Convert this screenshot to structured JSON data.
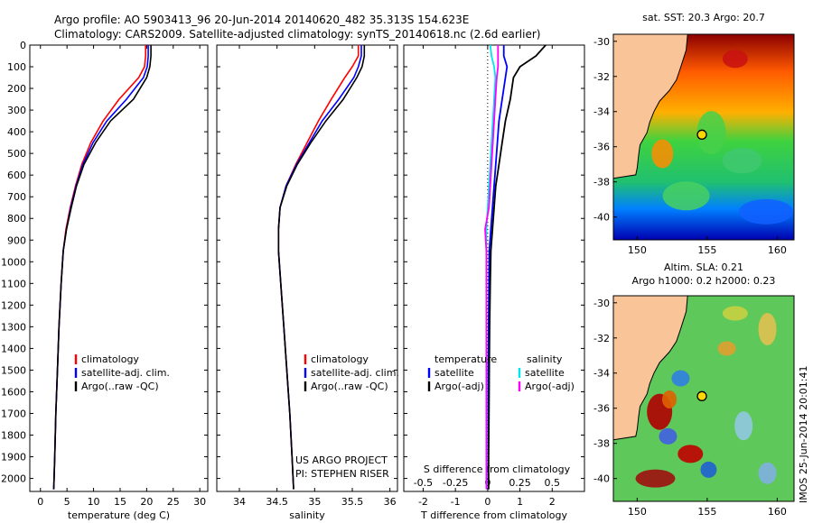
{
  "header": {
    "line1": "Argo profile: AO 5903413_96 20-Jun-2014 20140620_482 35.313S 154.623E",
    "line2": "Climatology: CARS2009. Satellite-adjusted climatology: synTS_20140618.nc (2.6d earlier)"
  },
  "side_label": "IMOS 25-Jun-2014 20:01:41",
  "colors": {
    "clim": "#ff0000",
    "sat": "#0000ff",
    "argo": "#000000",
    "sat_s": "#00e5ee",
    "argo_s": "#ff00ff",
    "land": "#f9c498"
  },
  "depth_ticks": [
    0,
    100,
    200,
    300,
    400,
    500,
    600,
    700,
    800,
    900,
    1000,
    1100,
    1200,
    1300,
    1400,
    1500,
    1600,
    1700,
    1800,
    1900,
    2000
  ],
  "chart_data": [
    {
      "type": "line",
      "xlabel": "temperature (deg C)",
      "ylabel": "",
      "xlim": [
        -2,
        31.5
      ],
      "ylim": [
        2060,
        0
      ],
      "xticks": [
        0,
        5,
        10,
        15,
        20,
        25,
        30
      ],
      "legend": [
        "climatology",
        "satellite-adj. clim.",
        "Argo(..raw -QC)"
      ],
      "series": [
        {
          "name": "climatology",
          "color": "clim",
          "x": [
            19.8,
            19.8,
            19.6,
            18.5,
            14.8,
            11.8,
            9.5,
            7.8,
            6.6,
            5.6,
            4.8,
            4.3,
            3.9,
            3.5,
            3.2,
            2.9,
            2.7,
            2.5
          ],
          "y": [
            0,
            50,
            100,
            150,
            250,
            350,
            450,
            550,
            650,
            750,
            850,
            950,
            1100,
            1300,
            1500,
            1700,
            1900,
            2050
          ]
        },
        {
          "name": "satellite-adj. clim.",
          "color": "sat",
          "x": [
            20.3,
            20.3,
            20.1,
            19.4,
            16.2,
            12.5,
            9.9,
            8.0,
            6.7,
            5.7,
            4.9,
            4.3,
            3.9,
            3.5,
            3.2,
            2.9,
            2.7,
            2.5
          ],
          "y": [
            0,
            50,
            100,
            150,
            250,
            350,
            450,
            550,
            650,
            750,
            850,
            950,
            1100,
            1300,
            1500,
            1700,
            1900,
            2050
          ]
        },
        {
          "name": "Argo(..raw -QC)",
          "color": "argo",
          "x": [
            20.8,
            20.8,
            20.6,
            20.0,
            17.5,
            13.2,
            10.4,
            8.2,
            6.8,
            5.8,
            4.9,
            4.3,
            3.9,
            3.5,
            3.2,
            2.9,
            2.7,
            2.5
          ],
          "y": [
            0,
            50,
            100,
            150,
            250,
            350,
            450,
            550,
            650,
            750,
            850,
            950,
            1100,
            1300,
            1500,
            1700,
            1900,
            2050
          ]
        }
      ]
    },
    {
      "type": "line",
      "xlabel": "salinity",
      "ylabel": "",
      "xlim": [
        33.7,
        36.1
      ],
      "xticks": [
        34,
        34.5,
        35,
        35.5,
        36
      ],
      "legend": [
        "climatology",
        "satellite-adj. clim.",
        "Argo(..raw -QC)"
      ],
      "annotation": [
        "US ARGO PROJECT",
        "PI: STEPHEN RISER"
      ],
      "series": [
        {
          "name": "climatology",
          "color": "clim",
          "x": [
            35.58,
            35.58,
            35.5,
            35.4,
            35.22,
            35.05,
            34.9,
            34.75,
            34.62,
            34.54,
            34.52,
            34.52,
            34.55,
            34.59,
            34.63,
            34.67,
            34.7,
            34.72
          ],
          "y": [
            0,
            50,
            100,
            150,
            250,
            350,
            450,
            550,
            650,
            750,
            850,
            950,
            1100,
            1300,
            1500,
            1700,
            1900,
            2050
          ]
        },
        {
          "name": "satellite-adj. clim.",
          "color": "sat",
          "x": [
            35.62,
            35.62,
            35.58,
            35.52,
            35.32,
            35.1,
            34.93,
            34.76,
            34.62,
            34.54,
            34.52,
            34.52,
            34.55,
            34.59,
            34.63,
            34.67,
            34.7,
            34.72
          ],
          "y": [
            0,
            50,
            100,
            150,
            250,
            350,
            450,
            550,
            650,
            750,
            850,
            950,
            1100,
            1300,
            1500,
            1700,
            1900,
            2050
          ]
        },
        {
          "name": "Argo(..raw -QC)",
          "color": "argo",
          "x": [
            35.66,
            35.66,
            35.63,
            35.56,
            35.38,
            35.15,
            34.95,
            34.77,
            34.63,
            34.54,
            34.52,
            34.52,
            34.55,
            34.59,
            34.63,
            34.67,
            34.7,
            34.72
          ],
          "y": [
            0,
            50,
            100,
            150,
            250,
            350,
            450,
            550,
            650,
            750,
            850,
            950,
            1100,
            1300,
            1500,
            1700,
            1900,
            2050
          ]
        }
      ]
    },
    {
      "type": "line",
      "xlim": [
        -2.6,
        3.0
      ],
      "xlabel": "T difference from climatology",
      "xlabel_top": "S difference from climatology",
      "xticks": [
        -2,
        -1,
        0,
        1,
        2
      ],
      "xtick_labels": [
        "-2",
        "-1",
        "0",
        "1",
        "2"
      ],
      "s_ticks": [
        -0.5,
        -0.25,
        0,
        0.25,
        0.5
      ],
      "s_tick_labels": [
        "-0.5",
        "-0.25",
        "0",
        "0.25",
        "0.5"
      ],
      "legend_t_title": "temperature",
      "legend_s_title": "salinity",
      "legend_t": [
        "satellite",
        "Argo(-adj)"
      ],
      "legend_s": [
        "satellite",
        "Argo(-adj)"
      ],
      "series": [
        {
          "name": "T satellite",
          "color": "sat",
          "x": [
            0.5,
            0.5,
            0.6,
            0.55,
            0.45,
            0.35,
            0.3,
            0.25,
            0.2,
            0.15,
            0.1,
            0.05,
            0.04,
            0.03,
            0.02,
            0.02,
            0.02,
            0.02
          ],
          "y": [
            0,
            50,
            100,
            150,
            250,
            350,
            450,
            550,
            650,
            750,
            850,
            950,
            1100,
            1300,
            1500,
            1700,
            1900,
            2050
          ]
        },
        {
          "name": "T Argo",
          "color": "argo",
          "x": [
            1.8,
            1.5,
            1.0,
            0.8,
            0.7,
            0.55,
            0.45,
            0.35,
            0.25,
            0.2,
            0.15,
            0.1,
            0.08,
            0.06,
            0.05,
            0.04,
            0.03,
            0.03
          ],
          "y": [
            0,
            50,
            100,
            150,
            250,
            350,
            450,
            550,
            650,
            750,
            850,
            950,
            1100,
            1300,
            1500,
            1700,
            1900,
            2050
          ]
        },
        {
          "name": "S satellite",
          "color": "sat_s",
          "x": [
            0.02,
            0.03,
            0.05,
            0.06,
            0.05,
            0.04,
            0.03,
            0.02,
            0.01,
            0.0,
            -0.01,
            -0.01,
            -0.01,
            -0.01,
            -0.01,
            -0.01,
            -0.01,
            -0.01
          ],
          "y": [
            0,
            50,
            100,
            150,
            250,
            350,
            450,
            550,
            650,
            750,
            850,
            950,
            1100,
            1300,
            1500,
            1700,
            1900,
            2050
          ]
        },
        {
          "name": "S Argo",
          "color": "argo_s",
          "x": [
            0.08,
            0.08,
            0.08,
            0.07,
            0.06,
            0.05,
            0.04,
            0.03,
            0.02,
            0.01,
            -0.02,
            -0.01,
            -0.01,
            -0.01,
            -0.01,
            -0.01,
            -0.01,
            -0.01
          ],
          "y": [
            0,
            50,
            100,
            150,
            250,
            350,
            450,
            550,
            650,
            750,
            850,
            950,
            1100,
            1300,
            1500,
            1700,
            1900,
            2050
          ]
        }
      ]
    },
    {
      "type": "heatmap",
      "title": "sat. SST: 20.3 Argo: 20.7",
      "xlim": [
        148.3,
        161.2
      ],
      "ylim": [
        -41.3,
        -29.6
      ],
      "xticks": [
        150,
        155,
        160
      ],
      "yticks": [
        -30,
        -32,
        -34,
        -36,
        -38,
        -40
      ],
      "float_lon": 154.623,
      "float_lat": -35.313
    },
    {
      "type": "heatmap",
      "title": "Altim. SLA: 0.21",
      "subtitle": "Argo h1000: 0.2 h2000: 0.23",
      "xlim": [
        148.3,
        161.2
      ],
      "ylim": [
        -41.3,
        -29.6
      ],
      "xticks": [
        150,
        155,
        160
      ],
      "yticks": [
        -30,
        -32,
        -34,
        -36,
        -38,
        -40
      ],
      "float_lon": 154.623,
      "float_lat": -35.313
    }
  ]
}
